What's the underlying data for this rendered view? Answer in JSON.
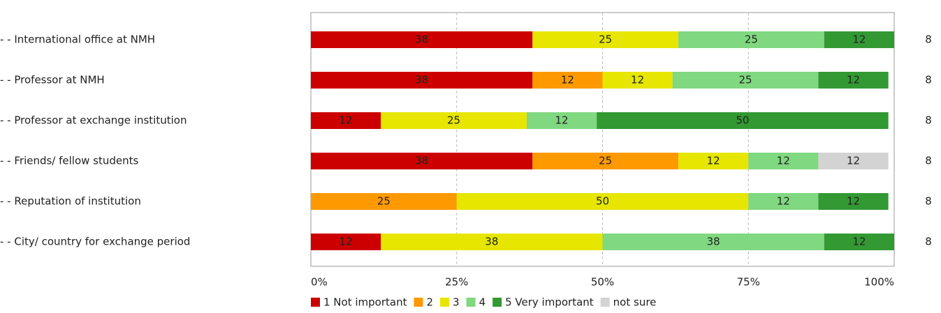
{
  "chart_data": {
    "type": "stacked-bar-horizontal",
    "categories": [
      "- - International office at NMH",
      "- - Professor at NMH",
      "- - Professor at exchange institution",
      "- - Friends/ fellow students",
      "- - Reputation of institution",
      "- - City/ country for exchange period"
    ],
    "series": [
      {
        "name": "1 Not important",
        "color": "#cc0000",
        "values": [
          38,
          38,
          12,
          38,
          null,
          12
        ]
      },
      {
        "name": "2",
        "color": "#ff9900",
        "values": [
          null,
          12,
          null,
          25,
          25,
          null
        ]
      },
      {
        "name": "3",
        "color": "#e6e600",
        "values": [
          25,
          12,
          25,
          12,
          50,
          38
        ]
      },
      {
        "name": "4",
        "color": "#80d880",
        "values": [
          25,
          25,
          12,
          12,
          12,
          38
        ]
      },
      {
        "name": "5 Very important",
        "color": "#339933",
        "values": [
          12,
          12,
          50,
          null,
          12,
          12
        ]
      },
      {
        "name": "not sure",
        "color": "#d3d3d3",
        "values": [
          null,
          null,
          null,
          12,
          null,
          null
        ]
      }
    ],
    "counts": [
      8,
      8,
      8,
      8,
      8,
      8
    ],
    "xlim": [
      0,
      100
    ],
    "xticks": [
      {
        "value": 0,
        "label": "0%"
      },
      {
        "value": 25,
        "label": "25%"
      },
      {
        "value": 50,
        "label": "50%"
      },
      {
        "value": 75,
        "label": "75%"
      },
      {
        "value": 100,
        "label": "100%"
      }
    ],
    "grid": true,
    "legend": "bottom"
  }
}
